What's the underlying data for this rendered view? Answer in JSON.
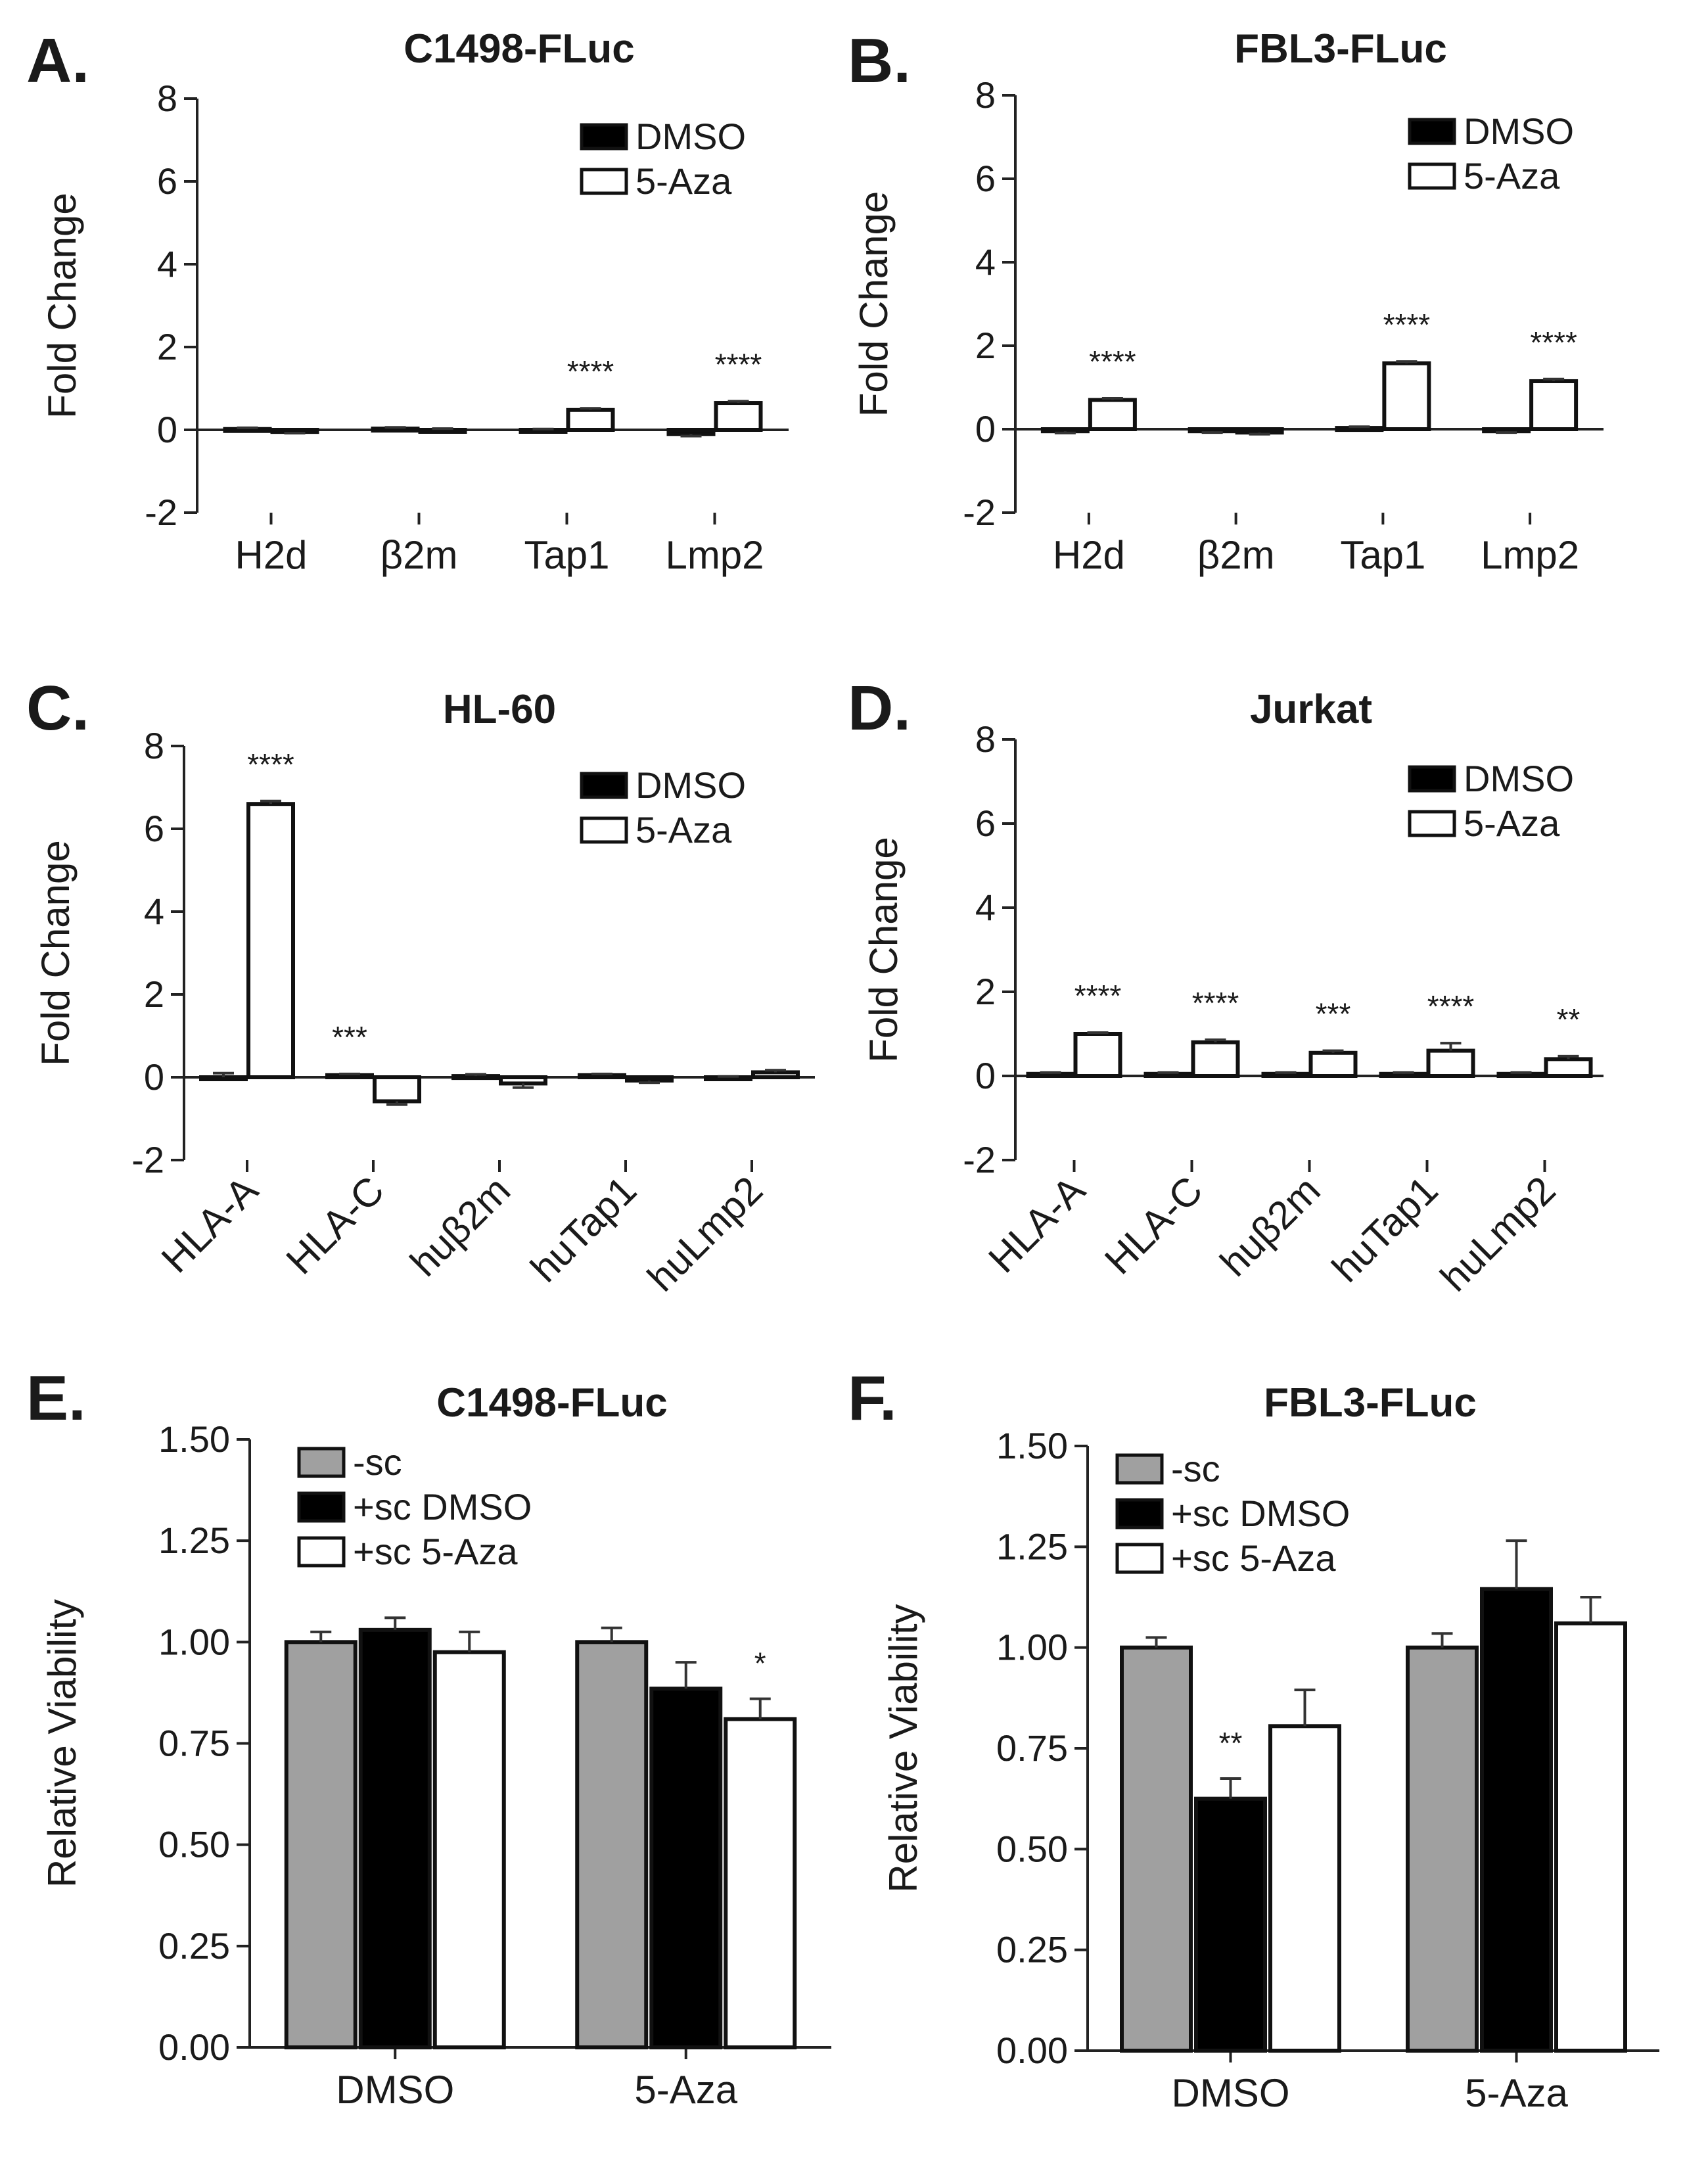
{
  "chart_data": [
    {
      "panel": "A.",
      "type": "bar",
      "title": "C1498-FLuc",
      "ylabel": "Fold Change",
      "xlabel": "",
      "ylim": [
        -2,
        8
      ],
      "yticks": [
        -2,
        0,
        2,
        4,
        6,
        8
      ],
      "ytick_labels": [
        "-2",
        "0",
        "2",
        "4",
        "6",
        "8"
      ],
      "categories": [
        "H2d",
        "β2m",
        "Tap1",
        "Lmp2"
      ],
      "rotated_labels": false,
      "legend": {
        "position": "top-right"
      },
      "series": [
        {
          "name": "DMSO",
          "fill": "#000000",
          "values": [
            0.02,
            0.03,
            0.0,
            -0.1
          ],
          "errors": [
            0.03,
            0.03,
            0.02,
            0.05
          ]
        },
        {
          "name": "5-Aza",
          "fill": "#ffffff",
          "values": [
            -0.05,
            0.0,
            0.48,
            0.65
          ],
          "errors": [
            0.03,
            0.03,
            0.04,
            0.04
          ]
        }
      ],
      "annotations": [
        {
          "category": 2,
          "series": 1,
          "text": "****"
        },
        {
          "category": 3,
          "series": 1,
          "text": "****"
        }
      ]
    },
    {
      "panel": "B.",
      "type": "bar",
      "title": "FBL3-FLuc",
      "ylabel": "Fold Change",
      "xlabel": "",
      "ylim": [
        -2,
        8
      ],
      "yticks": [
        -2,
        0,
        2,
        4,
        6,
        8
      ],
      "ytick_labels": [
        "-2",
        "0",
        "2",
        "4",
        "6",
        "8"
      ],
      "categories": [
        "H2d",
        "β2m",
        "Tap1",
        "Lmp2"
      ],
      "rotated_labels": false,
      "legend": {
        "position": "top-right"
      },
      "series": [
        {
          "name": "DMSO",
          "fill": "#000000",
          "values": [
            -0.05,
            -0.05,
            0.03,
            -0.05
          ],
          "errors": [
            0.04,
            0.03,
            0.03,
            0.03
          ]
        },
        {
          "name": "5-Aza",
          "fill": "#ffffff",
          "values": [
            0.7,
            -0.08,
            1.58,
            1.15
          ],
          "errors": [
            0.04,
            0.04,
            0.04,
            0.05
          ]
        }
      ],
      "annotations": [
        {
          "category": 0,
          "series": 1,
          "text": "****"
        },
        {
          "category": 2,
          "series": 1,
          "text": "****"
        },
        {
          "category": 3,
          "series": 1,
          "text": "****"
        }
      ]
    },
    {
      "panel": "C.",
      "type": "bar",
      "title": "HL-60",
      "ylabel": "Fold Change",
      "xlabel": "",
      "ylim": [
        -2,
        8
      ],
      "yticks": [
        -2,
        0,
        2,
        4,
        6,
        8
      ],
      "ytick_labels": [
        "-2",
        "0",
        "2",
        "4",
        "6",
        "8"
      ],
      "categories": [
        "HLA-A",
        "HLA-C",
        "huβ2m",
        "huTap1",
        "huLmp2"
      ],
      "rotated_labels": true,
      "legend": {
        "position": "top-right"
      },
      "series": [
        {
          "name": "DMSO",
          "fill": "#000000",
          "values": [
            0.0,
            0.05,
            0.03,
            0.05,
            0.0
          ],
          "errors": [
            0.1,
            0.03,
            0.04,
            0.03,
            0.02
          ]
        },
        {
          "name": "5-Aza",
          "fill": "#ffffff",
          "values": [
            6.6,
            -0.58,
            -0.15,
            -0.08,
            0.12
          ],
          "errors": [
            0.07,
            0.08,
            0.1,
            0.05,
            0.05
          ]
        }
      ],
      "annotations": [
        {
          "category": 0,
          "series": 1,
          "text": "****"
        },
        {
          "category": 1,
          "series": 0,
          "text": "***"
        }
      ]
    },
    {
      "panel": "D.",
      "type": "bar",
      "title": "Jurkat",
      "ylabel": "Fold Change",
      "xlabel": "",
      "ylim": [
        -2,
        8
      ],
      "yticks": [
        -2,
        0,
        2,
        4,
        6,
        8
      ],
      "ytick_labels": [
        "-2",
        "0",
        "2",
        "4",
        "6",
        "8"
      ],
      "categories": [
        "HLA-A",
        "HLA-C",
        "huβ2m",
        "huTap1",
        "huLmp2"
      ],
      "rotated_labels": true,
      "legend": {
        "position": "top-right"
      },
      "series": [
        {
          "name": "DMSO",
          "fill": "#000000",
          "values": [
            0.05,
            0.05,
            0.05,
            0.05,
            0.05
          ],
          "errors": [
            0.03,
            0.03,
            0.03,
            0.03,
            0.03
          ]
        },
        {
          "name": "5-Aza",
          "fill": "#ffffff",
          "values": [
            1.0,
            0.8,
            0.55,
            0.6,
            0.4
          ],
          "errors": [
            0.03,
            0.06,
            0.05,
            0.18,
            0.07
          ]
        }
      ],
      "annotations": [
        {
          "category": 0,
          "series": 1,
          "text": "****"
        },
        {
          "category": 1,
          "series": 1,
          "text": "****"
        },
        {
          "category": 2,
          "series": 1,
          "text": "***"
        },
        {
          "category": 3,
          "series": 1,
          "text": "****"
        },
        {
          "category": 4,
          "series": 1,
          "text": "**"
        }
      ]
    },
    {
      "panel": "E.",
      "type": "bar",
      "title": "C1498-FLuc",
      "ylabel": "Relative Viability",
      "xlabel": "",
      "ylim": [
        0,
        1.5
      ],
      "yticks": [
        0,
        0.25,
        0.5,
        0.75,
        1.0,
        1.25,
        1.5
      ],
      "ytick_labels": [
        "0.00",
        "0.25",
        "0.50",
        "0.75",
        "1.00",
        "1.25",
        "1.50"
      ],
      "categories": [
        "DMSO",
        "5-Aza"
      ],
      "rotated_labels": false,
      "legend": {
        "position": "top-left"
      },
      "series": [
        {
          "name": "-sc",
          "fill": "#a0a0a0",
          "values": [
            1.0,
            1.0
          ],
          "errors": [
            0.025,
            0.035
          ]
        },
        {
          "name": "+sc DMSO",
          "fill": "#000000",
          "values": [
            1.03,
            0.885
          ],
          "errors": [
            0.03,
            0.065
          ]
        },
        {
          "name": "+sc 5-Aza",
          "fill": "#ffffff",
          "values": [
            0.975,
            0.81
          ],
          "errors": [
            0.05,
            0.05
          ]
        }
      ],
      "annotations": [
        {
          "category": 1,
          "series": 2,
          "text": "*"
        }
      ]
    },
    {
      "panel": "F.",
      "type": "bar",
      "title": "FBL3-FLuc",
      "ylabel": "Relative Viability",
      "xlabel": "",
      "ylim": [
        0,
        1.5
      ],
      "yticks": [
        0,
        0.25,
        0.5,
        0.75,
        1.0,
        1.25,
        1.5
      ],
      "ytick_labels": [
        "0.00",
        "0.25",
        "0.50",
        "0.75",
        "1.00",
        "1.25",
        "1.50"
      ],
      "categories": [
        "DMSO",
        "5-Aza"
      ],
      "rotated_labels": false,
      "legend": {
        "position": "top-left"
      },
      "series": [
        {
          "name": "-sc",
          "fill": "#a0a0a0",
          "values": [
            1.0,
            1.0
          ],
          "errors": [
            0.025,
            0.035
          ]
        },
        {
          "name": "+sc DMSO",
          "fill": "#000000",
          "values": [
            0.625,
            1.145
          ],
          "errors": [
            0.05,
            0.12
          ]
        },
        {
          "name": "+sc 5-Aza",
          "fill": "#ffffff",
          "values": [
            0.805,
            1.06
          ],
          "errors": [
            0.09,
            0.065
          ]
        }
      ],
      "annotations": [
        {
          "category": 0,
          "series": 1,
          "text": "**"
        }
      ]
    }
  ]
}
